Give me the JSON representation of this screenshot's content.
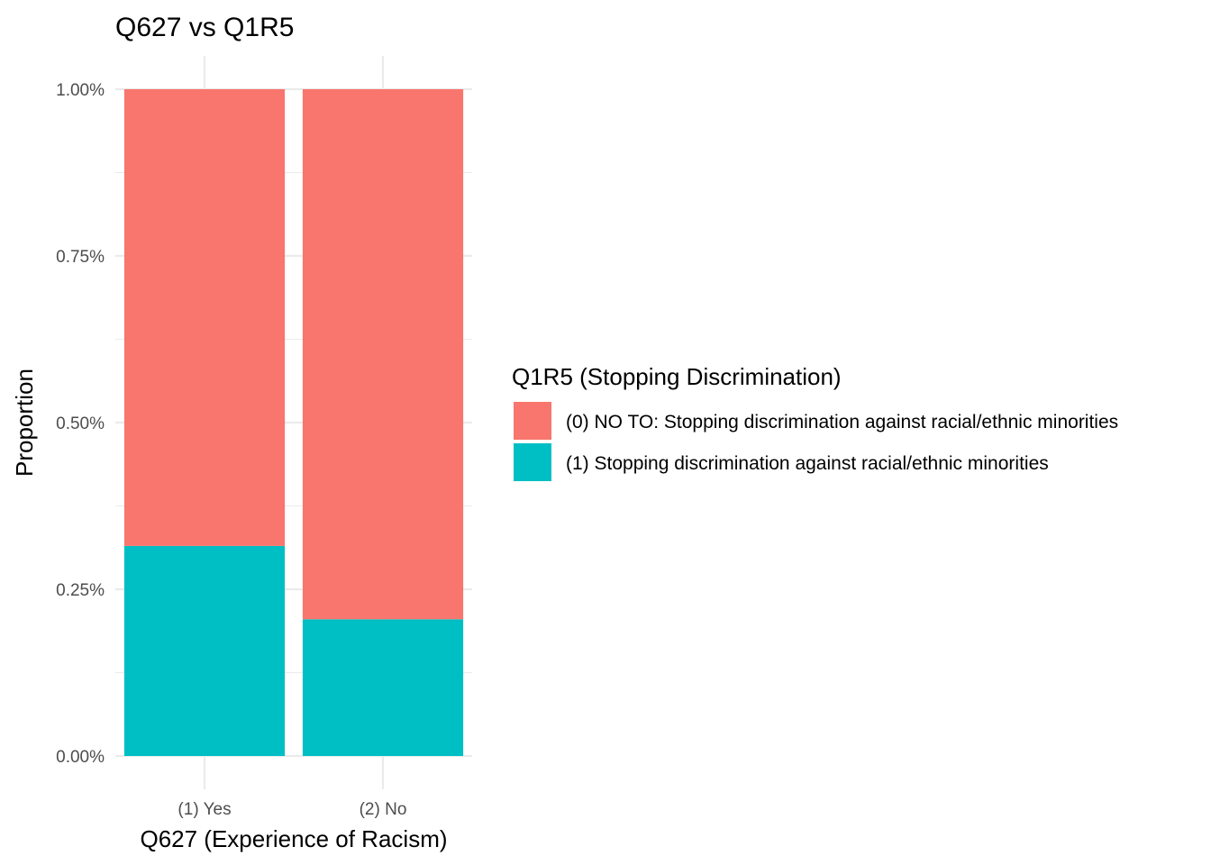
{
  "chart_data": {
    "type": "bar",
    "stacked": true,
    "title": "Q627 vs Q1R5",
    "xlabel": "Q627 (Experience of Racism)",
    "ylabel": "Proportion",
    "categories": [
      "(1) Yes",
      "(2) No"
    ],
    "y_ticks": [
      "0.00%",
      "0.25%",
      "0.50%",
      "0.75%",
      "1.00%"
    ],
    "y_tick_values": [
      0,
      0.25,
      0.5,
      0.75,
      1.0
    ],
    "ylim": [
      0,
      1.0
    ],
    "grid": true,
    "legend_position": "right",
    "legend_title": "Q1R5 (Stopping Discrimination)",
    "series": [
      {
        "name": "(0) NO TO: Stopping discrimination against racial/ethnic minorities",
        "color": "#F8766D",
        "values": [
          0.685,
          0.795
        ]
      },
      {
        "name": "(1) Stopping discrimination against racial/ethnic minorities",
        "color": "#00BFC4",
        "values": [
          0.315,
          0.205
        ]
      }
    ]
  }
}
